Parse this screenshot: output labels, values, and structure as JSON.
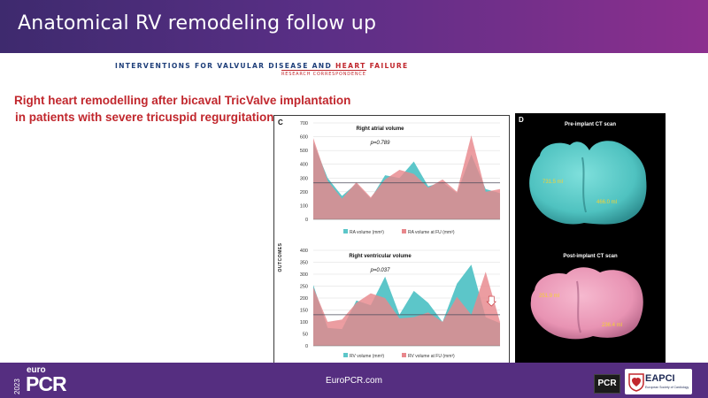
{
  "slide": {
    "title": "Anatomical RV remodeling follow up",
    "journal_main": "INTERVENTIONS FOR VALVULAR DISEASE",
    "journal_and": " AND ",
    "journal_hf": "HEART FAILURE",
    "journal_sub": "RESEARCH CORRESPONDENCE",
    "article_title_line1": "Right heart remodelling after bicaval TricValve implantation",
    "article_title_line2": "in patients with severe tricuspid regurgitation"
  },
  "panel_c": {
    "letter": "C",
    "y_label": "OUTCOMES"
  },
  "panel_d": {
    "letter": "D",
    "pre_label": "Pre-implant CT scan",
    "pre_vol1": "731.5 ml",
    "pre_vol2": "466.0 ml",
    "post_label": "Post-implant CT scan",
    "post_vol1": "251.9 ml",
    "post_vol2": "236.4 ml"
  },
  "colors": {
    "header_start": "#3e2a6e",
    "header_end": "#8c2f8e",
    "footer": "#552e80",
    "title_red": "#c1272d",
    "baseline_teal": "#5cc6c9",
    "fu_pink": "#e8878c",
    "overlap": "#e7a7a5",
    "ct_teal": "#56c8c6",
    "ct_pink": "#ec97b7",
    "ct_label": "#f5d232"
  },
  "chart_data": [
    {
      "type": "area",
      "title": "Right atrial volume",
      "annotation": "p=0.789",
      "x": [
        1,
        2,
        3,
        4,
        5,
        6,
        7,
        8,
        9,
        10,
        11,
        12,
        13,
        14
      ],
      "ylim": [
        0,
        700
      ],
      "yticks": [
        0,
        100,
        200,
        300,
        400,
        500,
        600,
        700
      ],
      "reference_line": 265,
      "series": [
        {
          "name": "RA volume (mm³)",
          "color": "#5cc6c9",
          "values": [
            560,
            300,
            170,
            260,
            150,
            320,
            300,
            420,
            240,
            270,
            190,
            470,
            220,
            190
          ]
        },
        {
          "name": "RA volume at FU (mm³)",
          "color": "#e8878c",
          "values": [
            590,
            280,
            150,
            270,
            160,
            290,
            360,
            330,
            230,
            290,
            200,
            610,
            200,
            220
          ]
        }
      ]
    },
    {
      "type": "area",
      "title": "Right ventricular volume",
      "annotation": "p=0.037",
      "x": [
        1,
        2,
        3,
        4,
        5,
        6,
        7,
        8,
        9,
        10,
        11,
        12,
        13,
        14
      ],
      "ylim": [
        0,
        400
      ],
      "yticks": [
        0,
        50,
        100,
        150,
        200,
        250,
        300,
        350,
        400
      ],
      "reference_line": 130,
      "series": [
        {
          "name": "RV volume (mm³)",
          "color": "#5cc6c9",
          "values": [
            255,
            75,
            70,
            190,
            170,
            290,
            130,
            230,
            180,
            100,
            260,
            340,
            120,
            95
          ]
        },
        {
          "name": "RV volume at FU (mm³)",
          "color": "#e8878c",
          "values": [
            245,
            100,
            110,
            180,
            220,
            200,
            115,
            120,
            140,
            100,
            205,
            130,
            310,
            100
          ]
        }
      ]
    }
  ],
  "footer": {
    "site": "EuroPCR.com",
    "logo_year": "2023",
    "logo_euro": "euro",
    "logo_pcr": "PCR",
    "badge": "PCR",
    "eapci": "EAPCI",
    "eapci_sub": "European Society of Cardiology"
  }
}
